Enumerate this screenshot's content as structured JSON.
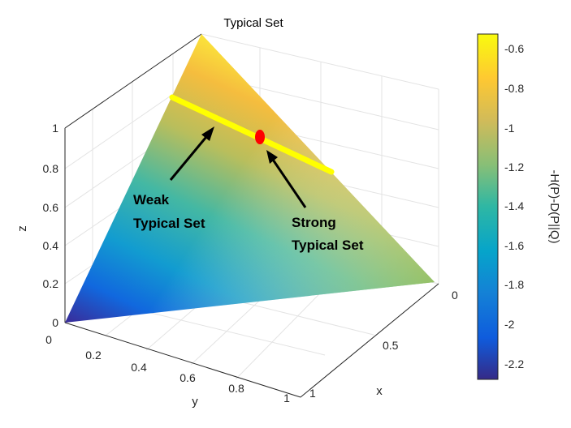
{
  "chart_data": {
    "type": "surface",
    "title": "Typical Set",
    "xlabel": "x",
    "ylabel": "y",
    "zlabel": "z",
    "xticks": [
      "0",
      "0.5",
      "1"
    ],
    "yticks": [
      "0",
      "0.2",
      "0.4",
      "0.6",
      "0.8",
      "1"
    ],
    "zticks": [
      "0",
      "0.2",
      "0.4",
      "0.6",
      "0.8",
      "1"
    ],
    "xlim": [
      0,
      1
    ],
    "ylim": [
      0,
      1
    ],
    "zlim": [
      0,
      1
    ],
    "grid": true,
    "colorbar": {
      "label": "-H(P)-D(P||Q)",
      "ticks": [
        "-0.6",
        "-0.8",
        "-1",
        "-1.2",
        "-1.4",
        "-1.6",
        "-1.8",
        "-2",
        "-2.2"
      ],
      "range": [
        -2.28,
        -0.53
      ],
      "colormap": "parula"
    },
    "simplex_vertices": [
      {
        "x": 0,
        "y": 0,
        "z": 1,
        "value": -0.53
      },
      {
        "x": 1,
        "y": 0,
        "z": 0,
        "value": -1.1
      },
      {
        "x": 0,
        "y": 1,
        "z": 0,
        "value": -2.28
      }
    ],
    "weak_typical_set": {
      "color": "#ffff00",
      "z": 0.85
    },
    "strong_typical_set": {
      "color": "#ff0000",
      "x": 0.05,
      "y": 0.1,
      "z": 0.85
    },
    "annotations": [
      {
        "line1": "Weak",
        "line2": "Typical Set"
      },
      {
        "line1": "Strong",
        "line2": "Typical Set"
      }
    ]
  }
}
